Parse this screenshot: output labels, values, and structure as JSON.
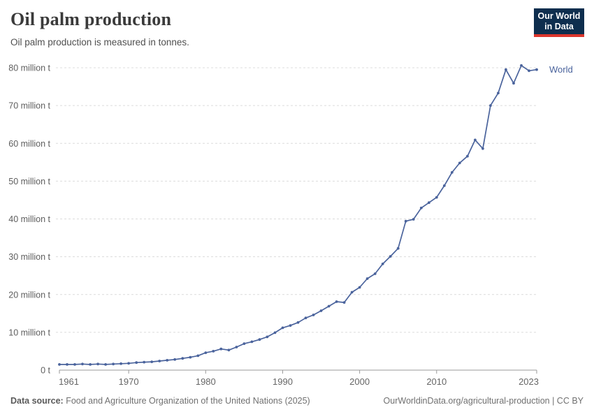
{
  "header": {
    "title": "Oil palm production",
    "subtitle": "Oil palm production is measured in tonnes.",
    "logo": {
      "line1": "Our World",
      "line2": "in Data",
      "bg_color": "#0e2e4e",
      "bar_color": "#dc362d"
    }
  },
  "chart_data": {
    "type": "line",
    "title": "Oil palm production",
    "unit": "tonnes",
    "grid": "horizontal-dashed",
    "legend_position": "end-of-line",
    "xlim": [
      1961,
      2023
    ],
    "ylim": [
      0,
      80000000
    ],
    "x_ticks": [
      1961,
      1970,
      1980,
      1990,
      2000,
      2010,
      2023
    ],
    "y_ticks": [
      {
        "value": 0,
        "label": "0 t"
      },
      {
        "value": 10,
        "label": "10 million t"
      },
      {
        "value": 20,
        "label": "20 million t"
      },
      {
        "value": 30,
        "label": "30 million t"
      },
      {
        "value": 40,
        "label": "40 million t"
      },
      {
        "value": 50,
        "label": "50 million t"
      },
      {
        "value": 60,
        "label": "60 million t"
      },
      {
        "value": 70,
        "label": "70 million t"
      },
      {
        "value": 80,
        "label": "80 million t"
      }
    ],
    "series": [
      {
        "name": "World",
        "color": "#4a639c",
        "x": [
          1961,
          1962,
          1963,
          1964,
          1965,
          1966,
          1967,
          1968,
          1969,
          1970,
          1971,
          1972,
          1973,
          1974,
          1975,
          1976,
          1977,
          1978,
          1979,
          1980,
          1981,
          1982,
          1983,
          1984,
          1985,
          1986,
          1987,
          1988,
          1989,
          1990,
          1991,
          1992,
          1993,
          1994,
          1995,
          1996,
          1997,
          1998,
          1999,
          2000,
          2001,
          2002,
          2003,
          2004,
          2005,
          2006,
          2007,
          2008,
          2009,
          2010,
          2011,
          2012,
          2013,
          2014,
          2015,
          2016,
          2017,
          2018,
          2019,
          2020,
          2021,
          2022,
          2023
        ],
        "values_million_t": [
          1.5,
          1.5,
          1.5,
          1.6,
          1.5,
          1.6,
          1.5,
          1.6,
          1.7,
          1.8,
          2.0,
          2.1,
          2.2,
          2.4,
          2.6,
          2.8,
          3.1,
          3.4,
          3.8,
          4.6,
          5.0,
          5.6,
          5.3,
          6.1,
          7.0,
          7.5,
          8.1,
          8.8,
          9.9,
          11.2,
          11.8,
          12.6,
          13.8,
          14.6,
          15.7,
          16.9,
          18.1,
          17.9,
          20.6,
          21.9,
          24.2,
          25.5,
          28.1,
          30.1,
          32.2,
          39.4,
          39.9,
          42.9,
          44.3,
          45.7,
          48.8,
          52.3,
          54.8,
          56.6,
          60.9,
          58.6,
          70.0,
          73.3,
          79.5,
          75.9,
          80.6,
          79.2,
          79.5
        ]
      }
    ],
    "colors": {
      "grid": "#dcdcdc",
      "axis": "#9a9a9a",
      "tick_label": "#5e5e5e"
    }
  },
  "footer": {
    "source_label": "Data source:",
    "source_text": " Food and Agriculture Organization of the United Nations (2025)",
    "credit": "OurWorldinData.org/agricultural-production | CC BY"
  }
}
